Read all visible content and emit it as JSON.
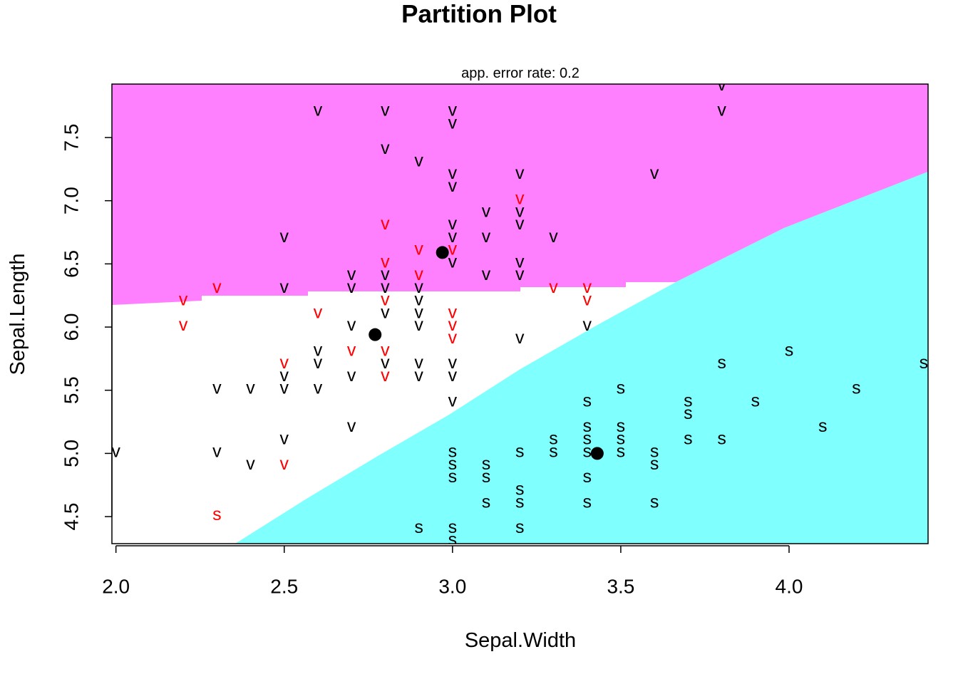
{
  "chart_data": {
    "type": "scatter",
    "title": "Partition Plot",
    "subtitle": "app. error rate: 0.2",
    "x_label": "Sepal.Width",
    "y_label": "Sepal.Length",
    "xlim": [
      1.988,
      4.413
    ],
    "ylim": [
      4.286,
      7.923
    ],
    "xticks": [
      {
        "value": 2.0,
        "label": "2.0"
      },
      2.5,
      {
        "value": 3.0,
        "label": "3.0"
      },
      3.5,
      {
        "value": 4.0,
        "label": "4.0"
      }
    ],
    "yticks": [
      4.5,
      {
        "value": 5.0,
        "label": "5.0"
      },
      5.5,
      {
        "value": 6.0,
        "label": "6.0"
      },
      6.5,
      {
        "value": 7.0,
        "label": "7.0"
      },
      7.5
    ],
    "region_colors": [
      "#ff80ff",
      "#ffffff",
      "#80ffff"
    ],
    "centroid_color": "#000000",
    "centroids": [
      {
        "x": 2.97,
        "y": 6.59
      },
      {
        "x": 2.77,
        "y": 5.94
      },
      {
        "x": 3.43,
        "y": 5.0
      }
    ],
    "points": [
      {
        "x": 2.0,
        "y": 5.0,
        "label": "v",
        "color": "black"
      },
      {
        "x": 2.2,
        "y": 6.2,
        "label": "v",
        "color": "red"
      },
      {
        "x": 2.2,
        "y": 6.0,
        "label": "v",
        "color": "red"
      },
      {
        "x": 2.3,
        "y": 6.3,
        "label": "v",
        "color": "red"
      },
      {
        "x": 2.3,
        "y": 5.5,
        "label": "v",
        "color": "black"
      },
      {
        "x": 2.3,
        "y": 5.0,
        "label": "v",
        "color": "black"
      },
      {
        "x": 2.3,
        "y": 4.5,
        "label": "s",
        "color": "red"
      },
      {
        "x": 2.4,
        "y": 5.5,
        "label": "v",
        "color": "black"
      },
      {
        "x": 2.4,
        "y": 4.9,
        "label": "v",
        "color": "black"
      },
      {
        "x": 2.5,
        "y": 6.7,
        "label": "v",
        "color": "black"
      },
      {
        "x": 2.5,
        "y": 6.3,
        "label": "v",
        "color": "black"
      },
      {
        "x": 2.5,
        "y": 5.7,
        "label": "v",
        "color": "red"
      },
      {
        "x": 2.5,
        "y": 5.6,
        "label": "v",
        "color": "black"
      },
      {
        "x": 2.5,
        "y": 5.5,
        "label": "v",
        "color": "black"
      },
      {
        "x": 2.5,
        "y": 5.1,
        "label": "v",
        "color": "black"
      },
      {
        "x": 2.5,
        "y": 4.9,
        "label": "v",
        "color": "red"
      },
      {
        "x": 2.6,
        "y": 7.7,
        "label": "v",
        "color": "black"
      },
      {
        "x": 2.6,
        "y": 6.1,
        "label": "v",
        "color": "red"
      },
      {
        "x": 2.6,
        "y": 5.8,
        "label": "v",
        "color": "black"
      },
      {
        "x": 2.6,
        "y": 5.7,
        "label": "v",
        "color": "black"
      },
      {
        "x": 2.6,
        "y": 5.5,
        "label": "v",
        "color": "black"
      },
      {
        "x": 2.7,
        "y": 6.4,
        "label": "v",
        "color": "black"
      },
      {
        "x": 2.7,
        "y": 6.3,
        "label": "v",
        "color": "black"
      },
      {
        "x": 2.7,
        "y": 6.0,
        "label": "v",
        "color": "black"
      },
      {
        "x": 2.7,
        "y": 5.8,
        "label": "v",
        "color": "red"
      },
      {
        "x": 2.7,
        "y": 5.6,
        "label": "v",
        "color": "black"
      },
      {
        "x": 2.7,
        "y": 5.2,
        "label": "v",
        "color": "black"
      },
      {
        "x": 2.8,
        "y": 7.7,
        "label": "v",
        "color": "black"
      },
      {
        "x": 2.8,
        "y": 7.4,
        "label": "v",
        "color": "black"
      },
      {
        "x": 2.8,
        "y": 6.8,
        "label": "v",
        "color": "red"
      },
      {
        "x": 2.8,
        "y": 6.5,
        "label": "v",
        "color": "red"
      },
      {
        "x": 2.8,
        "y": 6.4,
        "label": "v",
        "color": "black"
      },
      {
        "x": 2.8,
        "y": 6.3,
        "label": "v",
        "color": "black"
      },
      {
        "x": 2.8,
        "y": 6.2,
        "label": "v",
        "color": "red"
      },
      {
        "x": 2.8,
        "y": 6.1,
        "label": "v",
        "color": "black"
      },
      {
        "x": 2.8,
        "y": 5.8,
        "label": "v",
        "color": "red"
      },
      {
        "x": 2.8,
        "y": 5.7,
        "label": "v",
        "color": "black"
      },
      {
        "x": 2.8,
        "y": 5.6,
        "label": "v",
        "color": "red"
      },
      {
        "x": 2.9,
        "y": 7.3,
        "label": "v",
        "color": "black"
      },
      {
        "x": 2.9,
        "y": 6.6,
        "label": "v",
        "color": "red"
      },
      {
        "x": 2.9,
        "y": 6.4,
        "label": "v",
        "color": "red"
      },
      {
        "x": 2.9,
        "y": 6.3,
        "label": "v",
        "color": "black"
      },
      {
        "x": 2.9,
        "y": 6.2,
        "label": "v",
        "color": "black"
      },
      {
        "x": 2.9,
        "y": 6.1,
        "label": "v",
        "color": "black"
      },
      {
        "x": 2.9,
        "y": 6.0,
        "label": "v",
        "color": "black"
      },
      {
        "x": 2.9,
        "y": 5.7,
        "label": "v",
        "color": "black"
      },
      {
        "x": 2.9,
        "y": 5.6,
        "label": "v",
        "color": "black"
      },
      {
        "x": 2.9,
        "y": 4.4,
        "label": "s",
        "color": "black"
      },
      {
        "x": 3.0,
        "y": 7.7,
        "label": "v",
        "color": "black"
      },
      {
        "x": 3.0,
        "y": 7.6,
        "label": "v",
        "color": "black"
      },
      {
        "x": 3.0,
        "y": 7.2,
        "label": "v",
        "color": "black"
      },
      {
        "x": 3.0,
        "y": 7.1,
        "label": "v",
        "color": "black"
      },
      {
        "x": 3.0,
        "y": 6.8,
        "label": "v",
        "color": "black"
      },
      {
        "x": 3.0,
        "y": 6.7,
        "label": "v",
        "color": "black"
      },
      {
        "x": 3.0,
        "y": 6.6,
        "label": "v",
        "color": "red"
      },
      {
        "x": 3.0,
        "y": 6.5,
        "label": "v",
        "color": "black"
      },
      {
        "x": 3.0,
        "y": 6.1,
        "label": "v",
        "color": "red"
      },
      {
        "x": 3.0,
        "y": 6.0,
        "label": "v",
        "color": "red"
      },
      {
        "x": 3.0,
        "y": 5.9,
        "label": "v",
        "color": "red"
      },
      {
        "x": 3.0,
        "y": 5.7,
        "label": "v",
        "color": "black"
      },
      {
        "x": 3.0,
        "y": 5.6,
        "label": "v",
        "color": "black"
      },
      {
        "x": 3.0,
        "y": 5.4,
        "label": "v",
        "color": "black"
      },
      {
        "x": 3.0,
        "y": 5.0,
        "label": "s",
        "color": "black"
      },
      {
        "x": 3.0,
        "y": 4.9,
        "label": "s",
        "color": "black"
      },
      {
        "x": 3.0,
        "y": 4.8,
        "label": "s",
        "color": "black"
      },
      {
        "x": 3.0,
        "y": 4.4,
        "label": "s",
        "color": "black"
      },
      {
        "x": 3.0,
        "y": 4.3,
        "label": "s",
        "color": "black"
      },
      {
        "x": 3.1,
        "y": 6.9,
        "label": "v",
        "color": "black"
      },
      {
        "x": 3.1,
        "y": 6.7,
        "label": "v",
        "color": "black"
      },
      {
        "x": 3.1,
        "y": 6.4,
        "label": "v",
        "color": "black"
      },
      {
        "x": 3.1,
        "y": 4.9,
        "label": "s",
        "color": "black"
      },
      {
        "x": 3.1,
        "y": 4.8,
        "label": "s",
        "color": "black"
      },
      {
        "x": 3.1,
        "y": 4.6,
        "label": "s",
        "color": "black"
      },
      {
        "x": 3.2,
        "y": 7.2,
        "label": "v",
        "color": "black"
      },
      {
        "x": 3.2,
        "y": 7.0,
        "label": "v",
        "color": "red"
      },
      {
        "x": 3.2,
        "y": 6.9,
        "label": "v",
        "color": "black"
      },
      {
        "x": 3.2,
        "y": 6.8,
        "label": "v",
        "color": "black"
      },
      {
        "x": 3.2,
        "y": 6.5,
        "label": "v",
        "color": "black"
      },
      {
        "x": 3.2,
        "y": 6.4,
        "label": "v",
        "color": "black"
      },
      {
        "x": 3.2,
        "y": 5.9,
        "label": "v",
        "color": "black"
      },
      {
        "x": 3.2,
        "y": 5.0,
        "label": "s",
        "color": "black"
      },
      {
        "x": 3.2,
        "y": 4.7,
        "label": "s",
        "color": "black"
      },
      {
        "x": 3.2,
        "y": 4.6,
        "label": "s",
        "color": "black"
      },
      {
        "x": 3.2,
        "y": 4.4,
        "label": "s",
        "color": "black"
      },
      {
        "x": 3.3,
        "y": 6.7,
        "label": "v",
        "color": "black"
      },
      {
        "x": 3.3,
        "y": 6.3,
        "label": "v",
        "color": "red"
      },
      {
        "x": 3.3,
        "y": 5.1,
        "label": "s",
        "color": "black"
      },
      {
        "x": 3.3,
        "y": 5.0,
        "label": "s",
        "color": "black"
      },
      {
        "x": 3.4,
        "y": 6.3,
        "label": "v",
        "color": "red"
      },
      {
        "x": 3.4,
        "y": 6.2,
        "label": "v",
        "color": "red"
      },
      {
        "x": 3.4,
        "y": 6.0,
        "label": "v",
        "color": "black"
      },
      {
        "x": 3.4,
        "y": 5.4,
        "label": "s",
        "color": "black"
      },
      {
        "x": 3.4,
        "y": 5.2,
        "label": "s",
        "color": "black"
      },
      {
        "x": 3.4,
        "y": 5.1,
        "label": "s",
        "color": "black"
      },
      {
        "x": 3.4,
        "y": 5.0,
        "label": "s",
        "color": "black"
      },
      {
        "x": 3.4,
        "y": 4.8,
        "label": "s",
        "color": "black"
      },
      {
        "x": 3.4,
        "y": 4.6,
        "label": "s",
        "color": "black"
      },
      {
        "x": 3.5,
        "y": 5.5,
        "label": "s",
        "color": "black"
      },
      {
        "x": 3.5,
        "y": 5.2,
        "label": "s",
        "color": "black"
      },
      {
        "x": 3.5,
        "y": 5.1,
        "label": "s",
        "color": "black"
      },
      {
        "x": 3.5,
        "y": 5.0,
        "label": "s",
        "color": "black"
      },
      {
        "x": 3.6,
        "y": 7.2,
        "label": "v",
        "color": "black"
      },
      {
        "x": 3.6,
        "y": 5.0,
        "label": "s",
        "color": "black"
      },
      {
        "x": 3.6,
        "y": 4.9,
        "label": "s",
        "color": "black"
      },
      {
        "x": 3.6,
        "y": 4.6,
        "label": "s",
        "color": "black"
      },
      {
        "x": 3.7,
        "y": 5.4,
        "label": "s",
        "color": "black"
      },
      {
        "x": 3.7,
        "y": 5.3,
        "label": "s",
        "color": "black"
      },
      {
        "x": 3.7,
        "y": 5.1,
        "label": "s",
        "color": "black"
      },
      {
        "x": 3.8,
        "y": 7.9,
        "label": "v",
        "color": "black"
      },
      {
        "x": 3.8,
        "y": 7.7,
        "label": "v",
        "color": "black"
      },
      {
        "x": 3.8,
        "y": 5.7,
        "label": "s",
        "color": "black"
      },
      {
        "x": 3.8,
        "y": 5.1,
        "label": "s",
        "color": "black"
      },
      {
        "x": 3.9,
        "y": 5.4,
        "label": "s",
        "color": "black"
      },
      {
        "x": 4.0,
        "y": 5.8,
        "label": "s",
        "color": "black"
      },
      {
        "x": 4.1,
        "y": 5.2,
        "label": "s",
        "color": "black"
      },
      {
        "x": 4.2,
        "y": 5.5,
        "label": "s",
        "color": "black"
      },
      {
        "x": 4.4,
        "y": 5.7,
        "label": "s",
        "color": "black"
      }
    ]
  }
}
